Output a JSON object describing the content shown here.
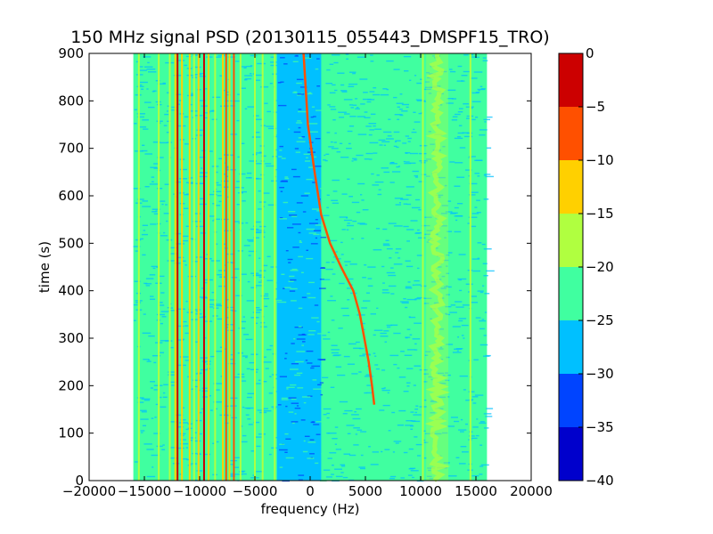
{
  "chart_data": {
    "type": "heatmap",
    "title": "150 MHz signal PSD (20130115_055443_DMSPF15_TRO)",
    "xlabel": "frequency (Hz)",
    "ylabel": "time (s)",
    "xlim": [
      -20000,
      20000
    ],
    "ylim": [
      0,
      900
    ],
    "x_ticks": [
      -20000,
      -15000,
      -10000,
      -5000,
      0,
      5000,
      10000,
      15000,
      20000
    ],
    "y_ticks": [
      0,
      100,
      200,
      300,
      400,
      500,
      600,
      700,
      800,
      900
    ],
    "data_extent_x": [
      -16000,
      16000
    ],
    "data_extent_y": [
      0,
      900
    ],
    "colormap": "jet",
    "colorbar": {
      "levels": [
        -40,
        -35,
        -30,
        -25,
        -20,
        -15,
        -10,
        -5,
        0
      ],
      "level_colors": [
        "#0000cc",
        "#0044ff",
        "#00c0ff",
        "#40ffa0",
        "#b0ff40",
        "#ffd000",
        "#ff5000",
        "#cc0000"
      ]
    },
    "background_level_db": -22.5,
    "low_noise_band_hz": [
      -3000,
      1000
    ],
    "low_noise_level_db": -27.5,
    "grid": false,
    "fixed_lines": [
      {
        "freq_hz": -15500,
        "level_db": -17
      },
      {
        "freq_hz": -13700,
        "level_db": -16
      },
      {
        "freq_hz": -12700,
        "level_db": -17
      },
      {
        "freq_hz": -12200,
        "level_db": -11
      },
      {
        "freq_hz": -12000,
        "level_db": -2
      },
      {
        "freq_hz": -11600,
        "level_db": -13
      },
      {
        "freq_hz": -10900,
        "level_db": -12
      },
      {
        "freq_hz": -10500,
        "level_db": -17
      },
      {
        "freq_hz": -10100,
        "level_db": -12
      },
      {
        "freq_hz": -9600,
        "level_db": -1
      },
      {
        "freq_hz": -9200,
        "level_db": -11
      },
      {
        "freq_hz": -8600,
        "level_db": -16
      },
      {
        "freq_hz": -7900,
        "level_db": -12
      },
      {
        "freq_hz": -7600,
        "level_db": -7
      },
      {
        "freq_hz": -7300,
        "level_db": -12
      },
      {
        "freq_hz": -6900,
        "level_db": -9
      },
      {
        "freq_hz": -6300,
        "level_db": -17
      },
      {
        "freq_hz": -5000,
        "level_db": -16
      },
      {
        "freq_hz": -4300,
        "level_db": -18
      },
      {
        "freq_hz": -3200,
        "level_db": -17
      },
      {
        "freq_hz": 10200,
        "level_db": -18
      },
      {
        "freq_hz": 14500,
        "level_db": -17
      }
    ],
    "noise_band": {
      "freq_range_hz": [
        10500,
        12500
      ],
      "level_db": -17
    },
    "doppler_trace": {
      "level_db": -10,
      "points": [
        {
          "time_s": 900,
          "freq_hz": -600
        },
        {
          "time_s": 750,
          "freq_hz": -200
        },
        {
          "time_s": 650,
          "freq_hz": 400
        },
        {
          "time_s": 560,
          "freq_hz": 1000
        },
        {
          "time_s": 500,
          "freq_hz": 1800
        },
        {
          "time_s": 450,
          "freq_hz": 2800
        },
        {
          "time_s": 400,
          "freq_hz": 3900
        },
        {
          "time_s": 350,
          "freq_hz": 4500
        },
        {
          "time_s": 300,
          "freq_hz": 4900
        },
        {
          "time_s": 250,
          "freq_hz": 5300
        },
        {
          "time_s": 200,
          "freq_hz": 5600
        },
        {
          "time_s": 160,
          "freq_hz": 5800
        }
      ]
    }
  }
}
